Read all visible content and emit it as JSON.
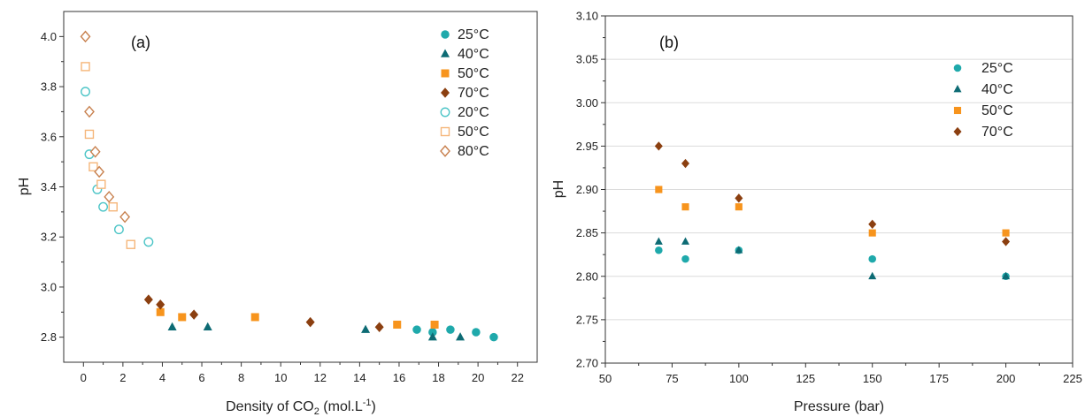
{
  "chart_data": [
    {
      "type": "scatter",
      "panel_label": "(a)",
      "xlabel_main": "Density of CO",
      "xlabel_sub": "2",
      "xlabel_unit_pre": " (mol.L",
      "xlabel_sup": "-1",
      "xlabel_unit_post": ")",
      "ylabel": "pH",
      "xlim": [
        -1,
        23
      ],
      "ylim": [
        2.7,
        4.1
      ],
      "xticks": [
        0,
        2,
        4,
        6,
        8,
        10,
        12,
        14,
        16,
        18,
        20,
        22
      ],
      "yticks": [
        2.8,
        3.0,
        3.2,
        3.4,
        3.6,
        3.8,
        4.0
      ],
      "ytick_decimals": 1,
      "grid": false,
      "legend_position": "top-right",
      "series": [
        {
          "name": "25°C",
          "marker": "circle",
          "filled": true,
          "color": "#1fa9ab",
          "points": [
            [
              16.9,
              2.83
            ],
            [
              17.7,
              2.82
            ],
            [
              18.6,
              2.83
            ],
            [
              19.9,
              2.82
            ],
            [
              20.8,
              2.8
            ]
          ]
        },
        {
          "name": "40°C",
          "marker": "triangle",
          "filled": true,
          "color": "#0d6b74",
          "points": [
            [
              4.5,
              2.84
            ],
            [
              6.3,
              2.84
            ],
            [
              14.3,
              2.83
            ],
            [
              17.7,
              2.8
            ],
            [
              19.1,
              2.8
            ]
          ]
        },
        {
          "name": "50°C",
          "marker": "square",
          "filled": true,
          "color": "#f7941d",
          "points": [
            [
              3.9,
              2.9
            ],
            [
              5.0,
              2.88
            ],
            [
              8.7,
              2.88
            ],
            [
              15.9,
              2.85
            ],
            [
              17.8,
              2.85
            ]
          ]
        },
        {
          "name": "70°C",
          "marker": "diamond",
          "filled": true,
          "color": "#8b3f10",
          "points": [
            [
              3.3,
              2.95
            ],
            [
              3.9,
              2.93
            ],
            [
              5.6,
              2.89
            ],
            [
              11.5,
              2.86
            ],
            [
              15.0,
              2.84
            ]
          ]
        },
        {
          "name": "20°C",
          "marker": "circle",
          "filled": false,
          "color": "#4dc5c7",
          "points": [
            [
              0.1,
              3.78
            ],
            [
              0.3,
              3.53
            ],
            [
              0.7,
              3.39
            ],
            [
              1.0,
              3.32
            ],
            [
              1.8,
              3.23
            ],
            [
              3.3,
              3.18
            ]
          ]
        },
        {
          "name": "50°C",
          "marker": "square",
          "filled": false,
          "color": "#f5b67a",
          "points": [
            [
              0.1,
              3.88
            ],
            [
              0.3,
              3.61
            ],
            [
              0.5,
              3.48
            ],
            [
              0.9,
              3.41
            ],
            [
              1.5,
              3.32
            ],
            [
              2.4,
              3.17
            ]
          ]
        },
        {
          "name": "80°C",
          "marker": "diamond",
          "filled": false,
          "color": "#c8814f",
          "points": [
            [
              0.1,
              4.0
            ],
            [
              0.3,
              3.7
            ],
            [
              0.6,
              3.54
            ],
            [
              0.8,
              3.46
            ],
            [
              1.3,
              3.36
            ],
            [
              2.1,
              3.28
            ]
          ]
        }
      ]
    },
    {
      "type": "scatter",
      "panel_label": "(b)",
      "xlabel": "Pressure (bar)",
      "ylabel": "pH",
      "xlim": [
        50,
        225
      ],
      "ylim": [
        2.7,
        3.1
      ],
      "xticks": [
        50,
        75,
        100,
        125,
        150,
        175,
        200,
        225
      ],
      "yticks": [
        2.7,
        2.75,
        2.8,
        2.85,
        2.9,
        2.95,
        3.0,
        3.05,
        3.1
      ],
      "ytick_decimals": 2,
      "grid": true,
      "legend_position": "top-right",
      "series": [
        {
          "name": "25°C",
          "marker": "circle",
          "filled": true,
          "color": "#1fa9ab",
          "points": [
            [
              70,
              2.83
            ],
            [
              80,
              2.82
            ],
            [
              100,
              2.83
            ],
            [
              150,
              2.82
            ],
            [
              200,
              2.8
            ]
          ]
        },
        {
          "name": "40°C",
          "marker": "triangle",
          "filled": true,
          "color": "#0d6b74",
          "points": [
            [
              70,
              2.84
            ],
            [
              80,
              2.84
            ],
            [
              100,
              2.83
            ],
            [
              150,
              2.8
            ],
            [
              200,
              2.8
            ]
          ]
        },
        {
          "name": "50°C",
          "marker": "square",
          "filled": true,
          "color": "#f7941d",
          "points": [
            [
              70,
              2.9
            ],
            [
              80,
              2.88
            ],
            [
              100,
              2.88
            ],
            [
              150,
              2.85
            ],
            [
              200,
              2.85
            ]
          ]
        },
        {
          "name": "70°C",
          "marker": "diamond",
          "filled": true,
          "color": "#8b3f10",
          "points": [
            [
              70,
              2.95
            ],
            [
              80,
              2.93
            ],
            [
              100,
              2.89
            ],
            [
              150,
              2.86
            ],
            [
              200,
              2.84
            ]
          ]
        }
      ]
    }
  ]
}
